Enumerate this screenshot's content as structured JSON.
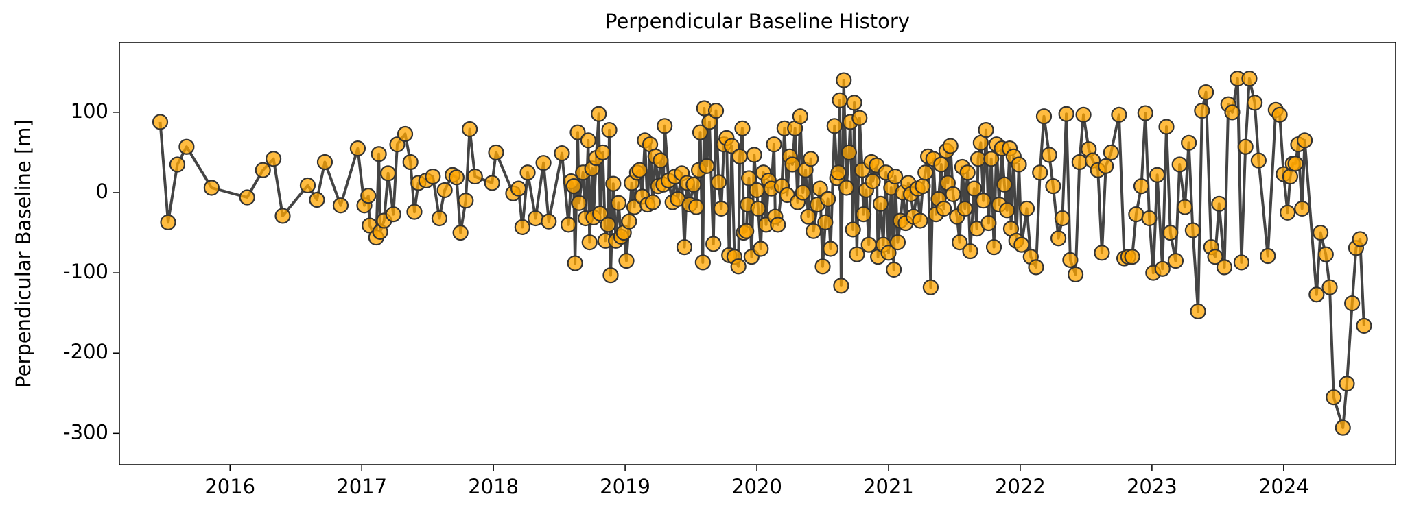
{
  "chart_data": {
    "type": "line",
    "title": "Perpendicular Baseline History",
    "ylabel": "Perpendicular Baseline [m]",
    "x": [
      2015.47,
      2015.53,
      2015.6,
      2015.67,
      2015.86,
      2016.13,
      2016.25,
      2016.33,
      2016.4,
      2016.59,
      2016.66,
      2016.72,
      2016.84,
      2016.97,
      2017.02,
      2017.05,
      2017.06,
      2017.11,
      2017.13,
      2017.14,
      2017.17,
      2017.2,
      2017.24,
      2017.27,
      2017.33,
      2017.37,
      2017.4,
      2017.43,
      2017.49,
      2017.54,
      2017.59,
      2017.63,
      2017.69,
      2017.72,
      2017.75,
      2017.79,
      2017.82,
      2017.86,
      2017.99,
      2018.02,
      2018.15,
      2018.19,
      2018.22,
      2018.26,
      2018.32,
      2018.38,
      2018.42,
      2018.52,
      2018.57,
      2018.59,
      2018.61,
      2018.62,
      2018.64,
      2018.65,
      2018.68,
      2018.7,
      2018.72,
      2018.73,
      2018.75,
      2018.76,
      2018.78,
      2018.8,
      2018.81,
      2018.83,
      2018.85,
      2018.87,
      2018.88,
      2018.89,
      2018.91,
      2018.93,
      2018.95,
      2018.97,
      2018.99,
      2019.01,
      2019.03,
      2019.05,
      2019.07,
      2019.09,
      2019.11,
      2019.13,
      2019.15,
      2019.17,
      2019.19,
      2019.21,
      2019.23,
      2019.25,
      2019.27,
      2019.29,
      2019.3,
      2019.33,
      2019.36,
      2019.38,
      2019.4,
      2019.43,
      2019.45,
      2019.47,
      2019.49,
      2019.52,
      2019.54,
      2019.56,
      2019.57,
      2019.59,
      2019.6,
      2019.62,
      2019.64,
      2019.67,
      2019.69,
      2019.71,
      2019.73,
      2019.75,
      2019.77,
      2019.79,
      2019.81,
      2019.83,
      2019.86,
      2019.87,
      2019.89,
      2019.9,
      2019.92,
      2019.93,
      2019.94,
      2019.96,
      2019.98,
      2020.0,
      2020.01,
      2020.03,
      2020.05,
      2020.07,
      2020.09,
      2020.11,
      2020.13,
      2020.14,
      2020.16,
      2020.19,
      2020.21,
      2020.23,
      2020.25,
      2020.27,
      2020.29,
      2020.31,
      2020.33,
      2020.35,
      2020.37,
      2020.39,
      2020.41,
      2020.43,
      2020.46,
      2020.48,
      2020.5,
      2020.52,
      2020.54,
      2020.56,
      2020.59,
      2020.61,
      2020.62,
      2020.63,
      2020.64,
      2020.66,
      2020.68,
      2020.7,
      2020.71,
      2020.73,
      2020.74,
      2020.76,
      2020.78,
      2020.8,
      2020.81,
      2020.83,
      2020.85,
      2020.87,
      2020.88,
      2020.91,
      2020.92,
      2020.94,
      2020.96,
      2020.98,
      2021.0,
      2021.02,
      2021.04,
      2021.05,
      2021.07,
      2021.09,
      2021.11,
      2021.13,
      2021.15,
      2021.17,
      2021.19,
      2021.22,
      2021.24,
      2021.26,
      2021.28,
      2021.3,
      2021.32,
      2021.34,
      2021.36,
      2021.38,
      2021.4,
      2021.42,
      2021.44,
      2021.45,
      2021.47,
      2021.49,
      2021.52,
      2021.54,
      2021.56,
      2021.58,
      2021.6,
      2021.62,
      2021.65,
      2021.67,
      2021.68,
      2021.7,
      2021.72,
      2021.74,
      2021.76,
      2021.78,
      2021.8,
      2021.82,
      2021.84,
      2021.86,
      2021.88,
      2021.9,
      2021.92,
      2021.93,
      2021.95,
      2021.97,
      2021.99,
      2022.01,
      2022.05,
      2022.08,
      2022.12,
      2022.15,
      2022.18,
      2022.22,
      2022.25,
      2022.29,
      2022.32,
      2022.35,
      2022.38,
      2022.42,
      2022.45,
      2022.48,
      2022.52,
      2022.55,
      2022.59,
      2022.62,
      2022.65,
      2022.69,
      2022.75,
      2022.79,
      2022.82,
      2022.85,
      2022.88,
      2022.92,
      2022.95,
      2022.98,
      2023.01,
      2023.04,
      2023.08,
      2023.11,
      2023.14,
      2023.18,
      2023.21,
      2023.25,
      2023.28,
      2023.31,
      2023.35,
      2023.38,
      2023.41,
      2023.45,
      2023.48,
      2023.51,
      2023.55,
      2023.58,
      2023.61,
      2023.65,
      2023.68,
      2023.71,
      2023.74,
      2023.78,
      2023.81,
      2023.88,
      2023.94,
      2023.97,
      2024.0,
      2024.03,
      2024.05,
      2024.07,
      2024.09,
      2024.11,
      2024.14,
      2024.16,
      2024.25,
      2024.28,
      2024.32,
      2024.35,
      2024.38,
      2024.45,
      2024.48,
      2024.52,
      2024.55,
      2024.58,
      2024.61
    ],
    "values": [
      88,
      -37,
      35,
      57,
      6,
      -6,
      28,
      42,
      -29,
      9,
      -9,
      38,
      -16,
      55,
      -16,
      -4,
      -41,
      -56,
      48,
      -49,
      -35,
      24,
      -27,
      60,
      73,
      38,
      -24,
      12,
      15,
      20,
      -32,
      3,
      22,
      19,
      -50,
      -10,
      79,
      20,
      12,
      50,
      -1,
      5,
      -43,
      25,
      -32,
      37,
      -36,
      49,
      -40,
      14,
      8,
      -88,
      75,
      -13,
      25,
      -32,
      65,
      -62,
      30,
      -31,
      43,
      98,
      -26,
      50,
      -60,
      -40,
      78,
      -103,
      11,
      -60,
      -13,
      -55,
      -50,
      -85,
      -36,
      12,
      -18,
      25,
      28,
      -5,
      65,
      -15,
      60,
      -12,
      45,
      8,
      40,
      10,
      83,
      15,
      -12,
      20,
      -8,
      24,
      -68,
      12,
      -15,
      10,
      -18,
      28,
      75,
      -87,
      105,
      33,
      88,
      -64,
      102,
      13,
      -20,
      60,
      68,
      -78,
      58,
      -80,
      -92,
      45,
      80,
      -50,
      -48,
      -15,
      18,
      -80,
      47,
      3,
      -20,
      -70,
      25,
      -40,
      15,
      5,
      60,
      -30,
      -40,
      8,
      80,
      -3,
      45,
      35,
      80,
      -12,
      95,
      0,
      28,
      -30,
      42,
      -48,
      -15,
      5,
      -92,
      -37,
      -8,
      -70,
      83,
      18,
      25,
      115,
      -116,
      140,
      6,
      50,
      88,
      -46,
      112,
      -77,
      93,
      28,
      -27,
      3,
      -65,
      38,
      14,
      34,
      -80,
      -14,
      -65,
      25,
      -75,
      6,
      -96,
      20,
      -62,
      -35,
      0,
      -38,
      12,
      -2,
      -30,
      5,
      -35,
      8,
      25,
      45,
      -118,
      42,
      -27,
      -8,
      35,
      -20,
      52,
      12,
      58,
      -2,
      -30,
      -62,
      32,
      -20,
      25,
      -73,
      5,
      -45,
      42,
      62,
      -10,
      78,
      -38,
      42,
      -68,
      60,
      -15,
      55,
      10,
      -22,
      55,
      -45,
      45,
      -60,
      35,
      -65,
      -20,
      -80,
      -93,
      25,
      95,
      47,
      8,
      -57,
      -32,
      98,
      -84,
      -102,
      38,
      97,
      54,
      40,
      28,
      -75,
      33,
      50,
      97,
      -82,
      -80,
      -80,
      -27,
      8,
      99,
      -32,
      -100,
      22,
      -95,
      82,
      -50,
      -85,
      35,
      -18,
      62,
      -47,
      -148,
      102,
      125,
      -68,
      -80,
      -14,
      -93,
      110,
      100,
      142,
      -87,
      57,
      142,
      112,
      40,
      -79,
      103,
      97,
      23,
      -25,
      20,
      36,
      36,
      60,
      -20,
      65,
      -127,
      -50,
      -77,
      -118,
      -255,
      -293,
      -238,
      -138,
      -69,
      -58,
      -166
    ],
    "line_color": "#444444",
    "marker_color": "#ffa500",
    "marker_edge": "#333333",
    "xlim": [
      2015.16,
      2024.85
    ],
    "xticks": [
      2016,
      2017,
      2018,
      2019,
      2020,
      2021,
      2022,
      2023,
      2024
    ],
    "ylim": [
      -339,
      187
    ],
    "yticks": [
      -300,
      -200,
      -100,
      0,
      100
    ]
  }
}
